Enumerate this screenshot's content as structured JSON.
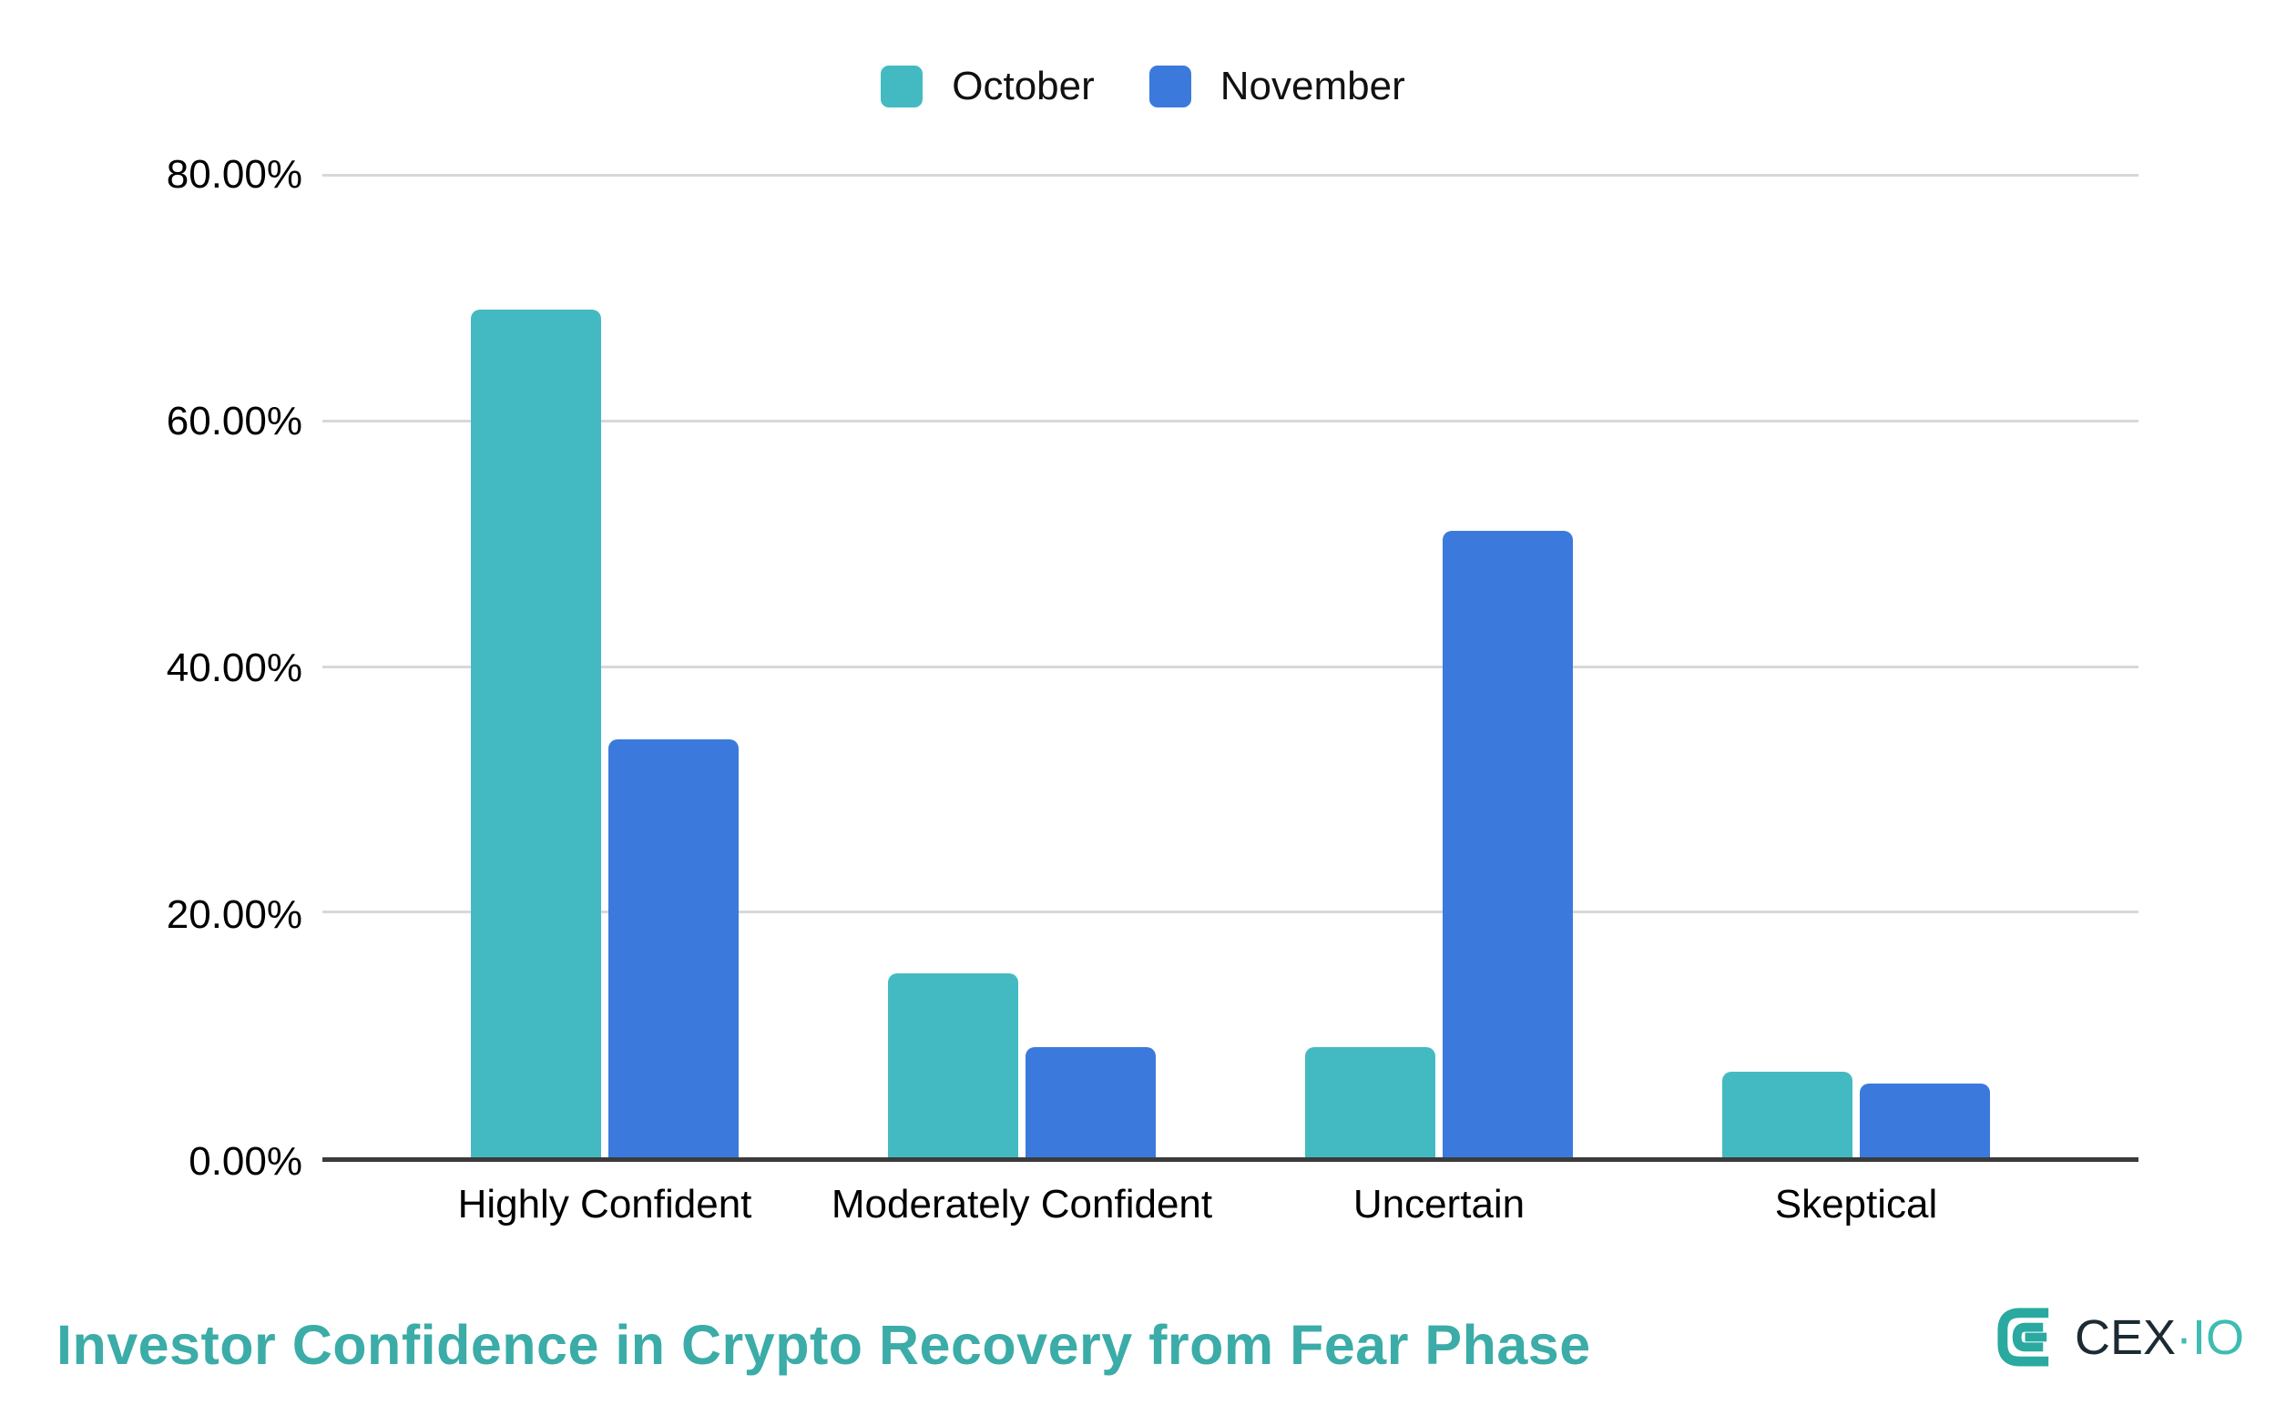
{
  "chart_data": {
    "type": "bar",
    "title": "Investor Confidence in Crypto Recovery from Fear Phase",
    "categories": [
      "Highly Confident",
      "Moderately Confident",
      "Uncertain",
      "Skeptical"
    ],
    "series": [
      {
        "name": "October",
        "color": "#43bac2",
        "values": [
          69,
          15,
          9,
          7
        ]
      },
      {
        "name": "November",
        "color": "#3b7adc",
        "values": [
          34,
          9,
          51,
          6
        ]
      }
    ],
    "xlabel": "",
    "ylabel": "",
    "ylim": [
      0,
      80
    ],
    "yticks": [
      {
        "label": "80.00%",
        "value": 80
      },
      {
        "label": "60.00%",
        "value": 60
      },
      {
        "label": "40.00%",
        "value": 40
      },
      {
        "label": "20.00%",
        "value": 20
      },
      {
        "label": "0.00%",
        "value": 0
      }
    ],
    "grid": true,
    "legend_position": "top",
    "value_format": "percent"
  },
  "legend": {
    "items": [
      "October",
      "November"
    ]
  },
  "footer": {
    "title": "Investor Confidence in Crypto Recovery from Fear Phase",
    "logo": {
      "cex": "CEX",
      "dot": "·",
      "io": "IO"
    }
  },
  "colors": {
    "october_bar": "#43bac2",
    "november_bar": "#3b7adc",
    "title_text": "#3baca7",
    "gridline": "#d8d8d8",
    "axis_line": "#3b3b3b",
    "axis_text": "#000000",
    "logo_mark_teal": "#2aa9a0",
    "logo_text_dark": "#1c2b33",
    "logo_text_teal": "#3ebcb2"
  }
}
